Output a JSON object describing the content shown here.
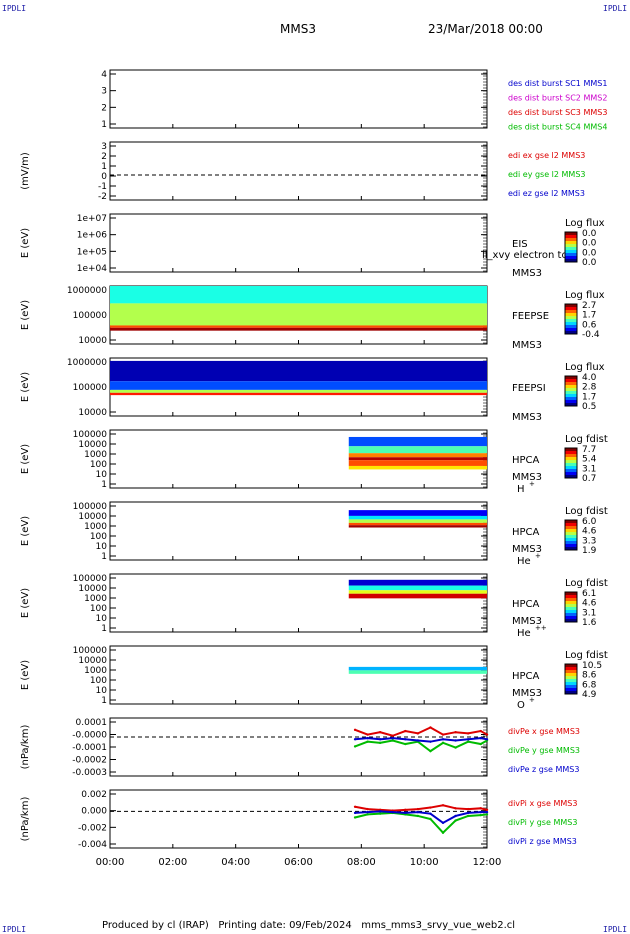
{
  "header": {
    "corner_label": "IPDLI",
    "spacecraft": "MMS3",
    "date": "23/Mar/2018 00:00"
  },
  "footer": {
    "text": "Produced by cl (IRAP)   Printing date: 09/Feb/2024   mms_mms3_srvy_vue_web2.cl"
  },
  "colors": {
    "mms1": "#0000cc",
    "mms2": "#cc00cc",
    "mms3": "#dd0000",
    "mms4": "#00bb00",
    "x": "#dd0000",
    "y": "#00bb00",
    "z": "#0000cc"
  },
  "time_axis": {
    "ticks": [
      "00:00",
      "02:00",
      "04:00",
      "06:00",
      "08:00",
      "10:00",
      "12:00"
    ],
    "range_hours": [
      0,
      12
    ]
  },
  "chart_data": [
    {
      "id": "des_dist",
      "type": "line",
      "ylabel": "",
      "yticks": [
        "4",
        "3",
        "2",
        "1"
      ],
      "ylim": [
        0.5,
        4.5
      ],
      "legend": [
        {
          "name": "des dist burst SC1 MMS1",
          "color": "#0000cc"
        },
        {
          "name": "des dist burst SC2 MMS2",
          "color": "#cc00cc"
        },
        {
          "name": "des dist burst SC3 MMS3",
          "color": "#dd0000"
        },
        {
          "name": "des dist burst SC4 MMS4",
          "color": "#00bb00"
        }
      ],
      "series": []
    },
    {
      "id": "edi",
      "type": "line",
      "ylabel": "(mV/m)",
      "yticks": [
        "3",
        "2",
        "1",
        "0",
        "-1",
        "-2"
      ],
      "ylim": [
        -2.5,
        3.3
      ],
      "zero_line": true,
      "legend": [
        {
          "name": "edi ex gse l2 MMS3",
          "color": "#dd0000"
        },
        {
          "name": "edi ey gse l2 MMS3",
          "color": "#00bb00"
        },
        {
          "name": "edi ez gse l2 MMS3",
          "color": "#0000cc"
        }
      ],
      "series": []
    },
    {
      "id": "eis",
      "type": "heatmap",
      "ylabel": "E (eV)",
      "yticks": [
        "1e+07",
        "1e+06",
        "1e+05",
        "1e+04"
      ],
      "instrument": "EIS",
      "spacecraft": "MMS3",
      "overlap_text": "ll_xvy electron to",
      "cbar_title": "Log flux",
      "cbar_ticks": [
        "0.0",
        "0.0",
        "0.0",
        "0.0"
      ],
      "coverage_hours": [],
      "bands": []
    },
    {
      "id": "feeps_e",
      "type": "heatmap",
      "ylabel": "E (eV)",
      "yticks": [
        "1000000",
        "100000",
        "10000"
      ],
      "instrument": "FEEPSE",
      "spacecraft": "MMS3",
      "cbar_title": "Log flux",
      "cbar_ticks": [
        "2.7",
        "1.7",
        "0.6",
        "-0.4"
      ],
      "coverage_hours": [
        0,
        12
      ],
      "bands": [
        [
          0.0,
          0.3,
          0.4
        ],
        [
          0.3,
          0.68,
          0.55
        ],
        [
          0.68,
          0.72,
          0.8
        ],
        [
          0.72,
          0.77,
          0.97
        ]
      ]
    },
    {
      "id": "feeps_i",
      "type": "heatmap",
      "ylabel": "E (eV)",
      "yticks": [
        "1000000",
        "100000",
        "10000"
      ],
      "instrument": "FEEPSI",
      "spacecraft": "MMS3",
      "cbar_title": "Log flux",
      "cbar_ticks": [
        "4.0",
        "2.8",
        "1.7",
        "0.5"
      ],
      "coverage_hours": [
        0,
        12
      ],
      "bands": [
        [
          0.05,
          0.4,
          0.05
        ],
        [
          0.4,
          0.55,
          0.2
        ],
        [
          0.55,
          0.6,
          0.55
        ],
        [
          0.6,
          0.64,
          0.85
        ]
      ]
    },
    {
      "id": "hpca_h",
      "type": "heatmap",
      "ylabel": "E (eV)",
      "yticks": [
        "100000",
        "10000",
        "1000",
        "100",
        "10",
        "1"
      ],
      "instrument": "HPCA",
      "spacecraft": "MMS3",
      "species": "H",
      "species_sup": "+",
      "cbar_title": "Log fdist",
      "cbar_ticks": [
        "7.7",
        "5.4",
        "3.1",
        "0.7"
      ],
      "coverage_hours": [
        7.6,
        12
      ],
      "bands": [
        [
          0.12,
          0.28,
          0.2
        ],
        [
          0.28,
          0.4,
          0.45
        ],
        [
          0.4,
          0.47,
          0.75
        ],
        [
          0.47,
          0.52,
          0.95
        ],
        [
          0.52,
          0.62,
          0.8
        ],
        [
          0.62,
          0.68,
          0.65
        ]
      ]
    },
    {
      "id": "hpca_he",
      "type": "heatmap",
      "ylabel": "E (eV)",
      "yticks": [
        "100000",
        "10000",
        "1000",
        "100",
        "10",
        "1"
      ],
      "instrument": "HPCA",
      "spacecraft": "MMS3",
      "species": "He",
      "species_sup": "+",
      "cbar_title": "Log fdist",
      "cbar_ticks": [
        "6.0",
        "4.6",
        "3.3",
        "1.9"
      ],
      "coverage_hours": [
        7.6,
        12
      ],
      "bands": [
        [
          0.14,
          0.24,
          0.12
        ],
        [
          0.24,
          0.3,
          0.35
        ],
        [
          0.3,
          0.36,
          0.55
        ],
        [
          0.36,
          0.4,
          0.8
        ],
        [
          0.4,
          0.44,
          0.97
        ]
      ]
    },
    {
      "id": "hpca_hepp",
      "type": "heatmap",
      "ylabel": "E (eV)",
      "yticks": [
        "100000",
        "10000",
        "1000",
        "100",
        "10",
        "1"
      ],
      "instrument": "HPCA",
      "spacecraft": "MMS3",
      "species": "He",
      "species_sup": "++",
      "cbar_title": "Log fdist",
      "cbar_ticks": [
        "6.1",
        "4.6",
        "3.1",
        "1.6"
      ],
      "coverage_hours": [
        7.6,
        12
      ],
      "bands": [
        [
          0.1,
          0.2,
          0.08
        ],
        [
          0.2,
          0.28,
          0.4
        ],
        [
          0.28,
          0.34,
          0.6
        ],
        [
          0.34,
          0.42,
          0.92
        ]
      ]
    },
    {
      "id": "hpca_o",
      "type": "heatmap",
      "ylabel": "E (eV)",
      "yticks": [
        "100000",
        "10000",
        "1000",
        "100",
        "10",
        "1"
      ],
      "instrument": "HPCA",
      "spacecraft": "MMS3",
      "species": "O",
      "species_sup": "+",
      "cbar_title": "Log fdist",
      "cbar_ticks": [
        "10.5",
        "8.6",
        "6.8",
        "4.9"
      ],
      "coverage_hours": [
        7.6,
        12
      ],
      "bands": [
        [
          0.36,
          0.42,
          0.3
        ],
        [
          0.42,
          0.48,
          0.45
        ]
      ]
    },
    {
      "id": "divpe",
      "type": "line",
      "ylabel": "(nPa/km)",
      "yticks": [
        "0.0001",
        "-0.0000",
        "-0.0001",
        "-0.0002",
        "-0.0003"
      ],
      "ylim": [
        -0.00033,
        0.00016
      ],
      "zero_line": true,
      "legend": [
        {
          "name": "divPe x gse MMS3",
          "color": "#dd0000"
        },
        {
          "name": "divPe y gse MMS3",
          "color": "#00bb00"
        },
        {
          "name": "divPe z gse MMS3",
          "color": "#0000cc"
        }
      ],
      "series": [
        {
          "name": "divPe x gse MMS3",
          "color": "#dd0000",
          "x": [
            7.8,
            8.2,
            8.6,
            9.0,
            9.4,
            9.8,
            10.2,
            10.6,
            11.0,
            11.4,
            11.8,
            12.0
          ],
          "y": [
            6e-05,
            2e-05,
            4e-05,
            1e-05,
            5e-05,
            3e-05,
            8e-05,
            2e-05,
            4e-05,
            3e-05,
            5e-05,
            2e-05
          ]
        },
        {
          "name": "divPe y gse MMS3",
          "color": "#00bb00",
          "x": [
            7.8,
            8.2,
            8.6,
            9.0,
            9.4,
            9.8,
            10.2,
            10.6,
            11.0,
            11.4,
            11.8,
            12.0
          ],
          "y": [
            -8e-05,
            -4e-05,
            -5e-05,
            -3e-05,
            -6e-05,
            -4e-05,
            -0.00012,
            -5e-05,
            -9e-05,
            -4e-05,
            -6e-05,
            -3e-05
          ]
        },
        {
          "name": "divPe z gse MMS3",
          "color": "#0000cc",
          "x": [
            7.8,
            8.2,
            8.6,
            9.0,
            9.4,
            9.8,
            10.2,
            10.6,
            11.0,
            11.4,
            11.8,
            12.0
          ],
          "y": [
            -2e-05,
            -1e-05,
            -2e-05,
            -1e-05,
            -2e-05,
            -3e-05,
            -4e-05,
            -2e-05,
            -3e-05,
            -2e-05,
            -1e-05,
            -2e-05
          ]
        }
      ]
    },
    {
      "id": "divpi",
      "type": "line",
      "ylabel": "(nPa/km)",
      "yticks": [
        "0.002",
        "0.000",
        "-0.002",
        "-0.004"
      ],
      "ylim": [
        -0.0048,
        0.0028
      ],
      "zero_line": true,
      "legend": [
        {
          "name": "divPi x gse MMS3",
          "color": "#dd0000"
        },
        {
          "name": "divPi y gse MMS3",
          "color": "#00bb00"
        },
        {
          "name": "divPi z gse MMS3",
          "color": "#0000cc"
        }
      ],
      "series": [
        {
          "name": "divPi x gse MMS3",
          "color": "#dd0000",
          "x": [
            7.8,
            8.2,
            8.6,
            9.0,
            9.4,
            9.8,
            10.2,
            10.6,
            11.0,
            11.4,
            11.8,
            12.0
          ],
          "y": [
            0.0006,
            0.0003,
            0.0002,
            0.0001,
            0.0002,
            0.0003,
            0.0005,
            0.0008,
            0.0004,
            0.0003,
            0.0004,
            0.0002
          ]
        },
        {
          "name": "divPi y gse MMS3",
          "color": "#00bb00",
          "x": [
            7.8,
            8.2,
            8.6,
            9.0,
            9.4,
            9.8,
            10.2,
            10.6,
            11.0,
            11.4,
            11.8,
            12.0
          ],
          "y": [
            -0.0008,
            -0.0004,
            -0.0003,
            -0.0002,
            -0.0004,
            -0.0006,
            -0.001,
            -0.0028,
            -0.0012,
            -0.0006,
            -0.0005,
            -0.0004
          ]
        },
        {
          "name": "divPi z gse MMS3",
          "color": "#0000cc",
          "x": [
            7.8,
            8.2,
            8.6,
            9.0,
            9.4,
            9.8,
            10.2,
            10.6,
            11.0,
            11.4,
            11.8,
            12.0
          ],
          "y": [
            -0.0002,
            -0.0001,
            0.0,
            -0.0001,
            -0.0002,
            -0.0001,
            -0.0003,
            -0.0015,
            -0.0006,
            -0.0002,
            -0.0001,
            -0.0001
          ]
        }
      ]
    }
  ]
}
